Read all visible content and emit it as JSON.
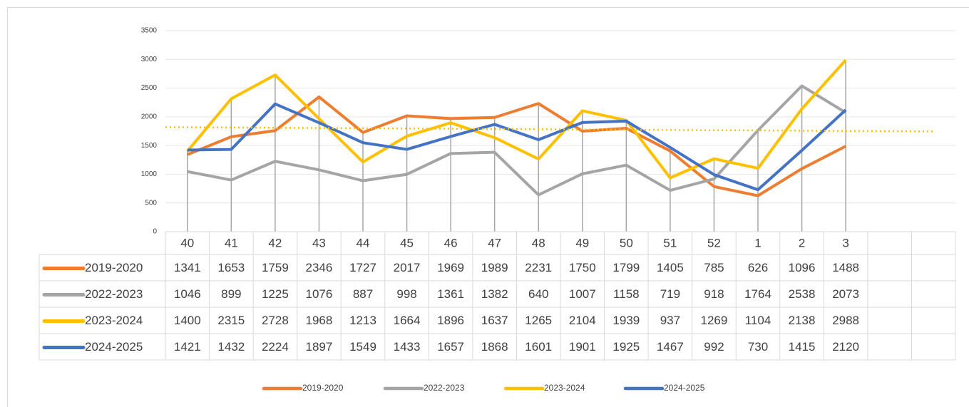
{
  "chart_data": {
    "type": "line",
    "categories": [
      "40",
      "41",
      "42",
      "43",
      "44",
      "45",
      "46",
      "47",
      "48",
      "49",
      "50",
      "51",
      "52",
      "1",
      "2",
      "3",
      null,
      null
    ],
    "series": [
      {
        "name": "2019-2020",
        "color": "#ed7d31",
        "values": [
          1341,
          1653,
          1759,
          2346,
          1727,
          2017,
          1969,
          1989,
          2231,
          1750,
          1799,
          1405,
          785,
          626,
          1096,
          1488,
          null,
          null
        ]
      },
      {
        "name": "2022-2023",
        "color": "#a5a5a5",
        "values": [
          1046,
          899,
          1225,
          1076,
          887,
          998,
          1361,
          1382,
          640,
          1007,
          1158,
          719,
          918,
          1764,
          2538,
          2073,
          null,
          null
        ]
      },
      {
        "name": "2023-2024",
        "color": "#ffc000",
        "values": [
          1400,
          2315,
          2728,
          1968,
          1213,
          1664,
          1896,
          1637,
          1265,
          2104,
          1939,
          937,
          1269,
          1104,
          2138,
          2988,
          null,
          null
        ]
      },
      {
        "name": "2024-2025",
        "color": "#4472c4",
        "values": [
          1421,
          1432,
          2224,
          1897,
          1549,
          1433,
          1657,
          1868,
          1601,
          1901,
          1925,
          1467,
          992,
          730,
          1415,
          2120,
          null,
          null
        ]
      }
    ],
    "ylim": [
      0,
      3500
    ],
    "yticks": [
      0,
      500,
      1000,
      1500,
      2000,
      2500,
      3000,
      3500
    ],
    "grid": true,
    "drop_lines": true,
    "data_table": true,
    "legend": "bottom",
    "trendline": {
      "series": 2,
      "type": "linear"
    }
  }
}
